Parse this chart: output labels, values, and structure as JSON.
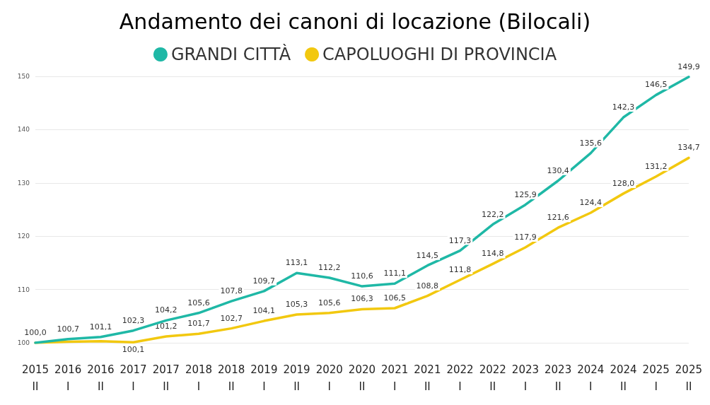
{
  "chart_data": {
    "type": "line",
    "title": "Andamento dei canoni di locazione (Bilocali)",
    "categories": [
      "2015\nII",
      "2016\nI",
      "2016\nII",
      "2017\nI",
      "2017\nII",
      "2018\nI",
      "2018\nII",
      "2019\nI",
      "2019\nII",
      "2020\nI",
      "2020\nII",
      "2021\nI",
      "2021\nII",
      "2022\nI",
      "2022\nII",
      "2023\nI",
      "2023\nII",
      "2024\nI",
      "2024\nII",
      "2025\nI",
      "2025\nII"
    ],
    "series": [
      {
        "name": "GRANDI CITTÀ",
        "color": "#1fb8a6",
        "values": [
          100.0,
          100.7,
          101.1,
          102.3,
          104.2,
          105.6,
          107.8,
          109.7,
          113.1,
          112.2,
          110.6,
          111.1,
          114.5,
          117.3,
          122.2,
          125.9,
          130.4,
          135.6,
          142.3,
          146.5,
          149.9
        ],
        "value_labels": [
          "100,0",
          "100,7",
          "101,1",
          "102,3",
          "104,2",
          "105,6",
          "107,8",
          "109,7",
          "113,1",
          "112,2",
          "110,6",
          "111,1",
          "114,5",
          "117,3",
          "122,2",
          "125,9",
          "130,4",
          "135,6",
          "142,3",
          "146,5",
          "149,9"
        ]
      },
      {
        "name": "CAPOLUOGHI DI PROVINCIA",
        "color": "#f2c80f",
        "values": [
          100.0,
          100.2,
          100.3,
          100.1,
          101.2,
          101.7,
          102.7,
          104.1,
          105.3,
          105.6,
          106.3,
          106.5,
          108.8,
          111.8,
          114.8,
          117.9,
          121.6,
          124.4,
          128.0,
          131.2,
          134.7
        ],
        "value_labels": [
          null,
          null,
          null,
          "100,1",
          "101,2",
          "101,7",
          "102,7",
          "104,1",
          "105,3",
          "105,6",
          "106,3",
          "106,5",
          "108,8",
          "111,8",
          "114,8",
          "117,9",
          "121,6",
          "124,4",
          "128,0",
          "131,2",
          "134,7"
        ]
      }
    ],
    "ylim": [
      100,
      150
    ],
    "yticks": [
      100,
      110,
      120,
      130,
      140,
      150
    ],
    "grid": "y",
    "legend": "top",
    "marker": "none",
    "line_style": "solid"
  }
}
